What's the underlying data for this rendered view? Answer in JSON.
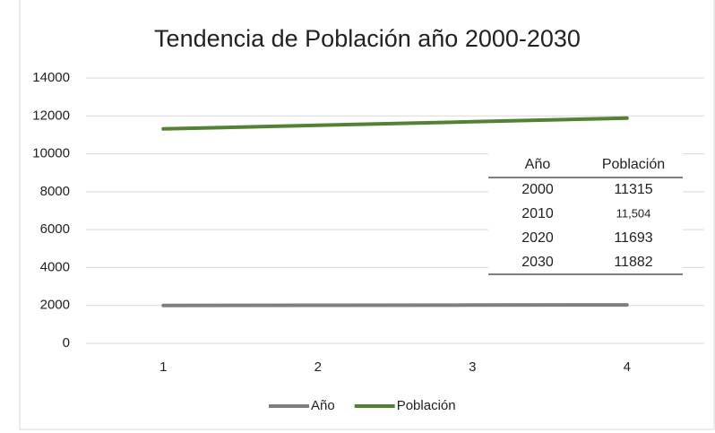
{
  "chart_data": {
    "type": "line",
    "title": "Tendencia de Población año 2000-2030",
    "categories": [
      "1",
      "2",
      "3",
      "4"
    ],
    "series": [
      {
        "name": "Año",
        "color": "#7f7f7f",
        "values": [
          2000,
          2010,
          2020,
          2030
        ]
      },
      {
        "name": "Población",
        "color": "#548235",
        "values": [
          11315,
          11504,
          11693,
          11882
        ]
      }
    ],
    "ylim": [
      0,
      14000
    ],
    "yticks": [
      0,
      2000,
      4000,
      6000,
      8000,
      10000,
      12000,
      14000
    ],
    "grid": true,
    "legend": "bottom"
  },
  "table": {
    "columns": [
      "Año",
      "Población"
    ],
    "rows": [
      [
        "2000",
        "11315"
      ],
      [
        "2010",
        "11,504"
      ],
      [
        "2020",
        "11693"
      ],
      [
        "2030",
        "11882"
      ]
    ]
  }
}
